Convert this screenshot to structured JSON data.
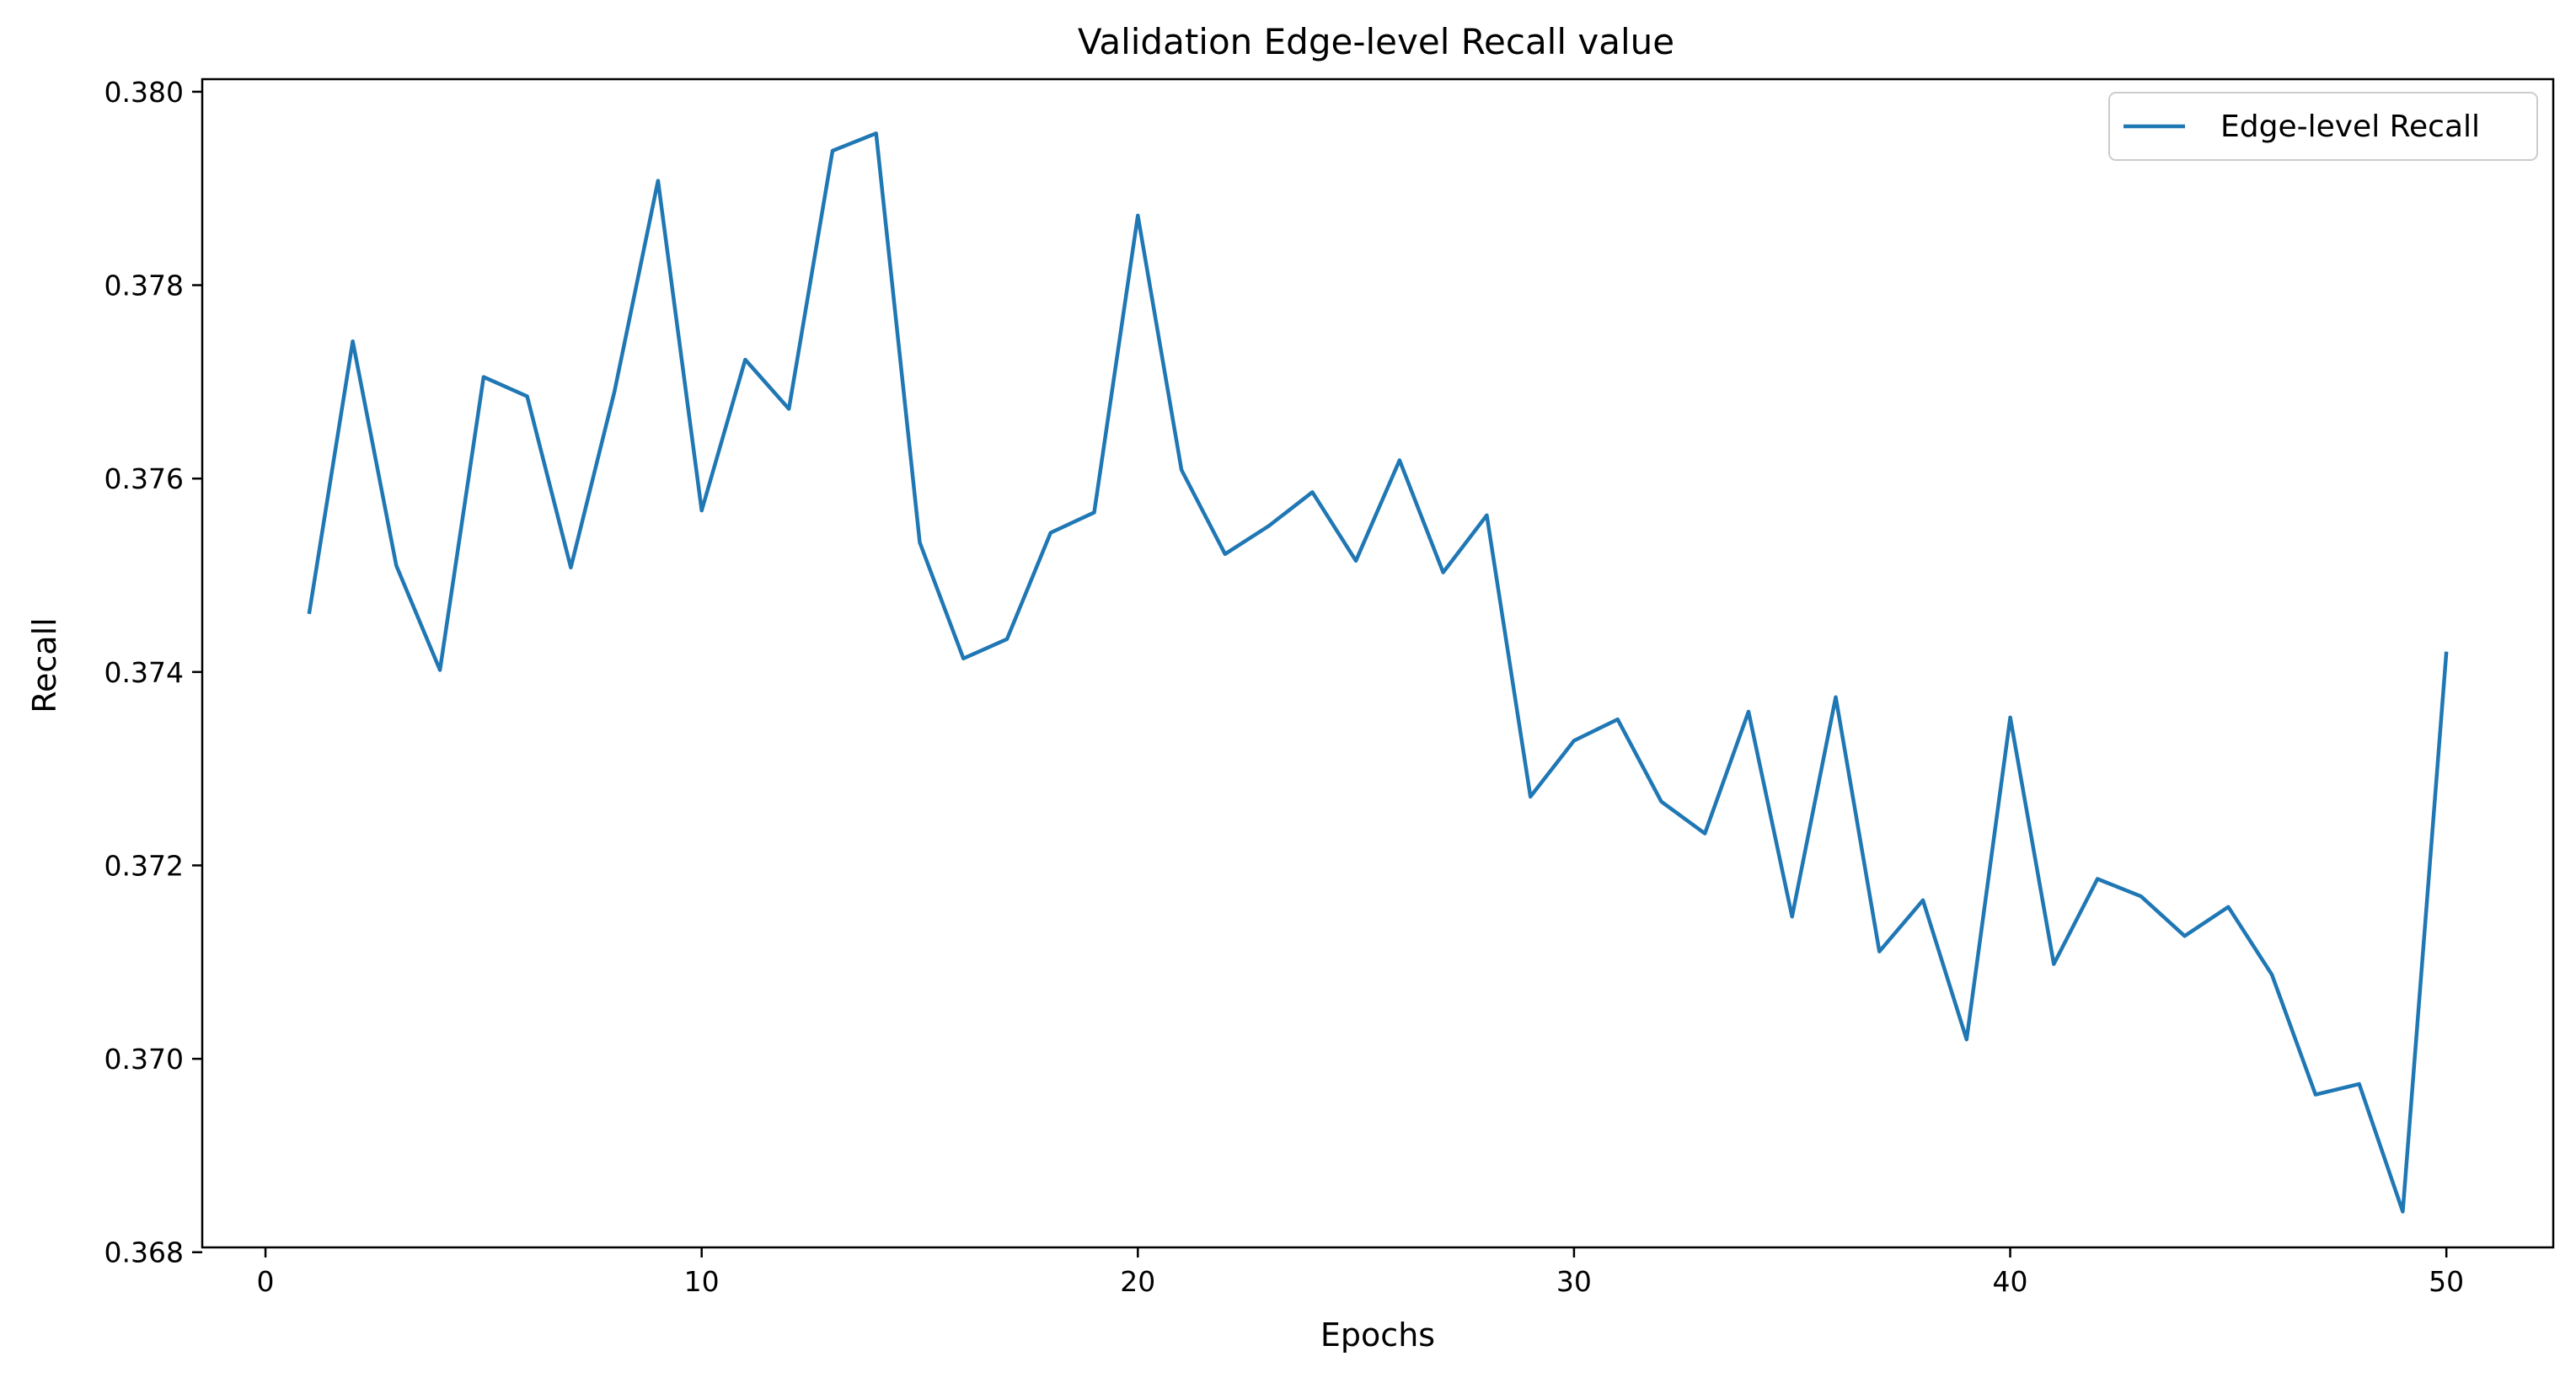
{
  "chart_data": {
    "type": "line",
    "title": "Validation Edge-level Recall value",
    "xlabel": "Epochs",
    "ylabel": "Recall",
    "xlim": [
      -1.45,
      52.45
    ],
    "ylim": [
      0.36805,
      0.38013
    ],
    "xticks": [
      0,
      10,
      20,
      30,
      40,
      50
    ],
    "xtick_labels": [
      "0",
      "10",
      "20",
      "30",
      "40",
      "50"
    ],
    "yticks": [
      0.368,
      0.37,
      0.372,
      0.374,
      0.376,
      0.378,
      0.38
    ],
    "ytick_labels": [
      "0.368",
      "0.370",
      "0.372",
      "0.374",
      "0.376",
      "0.378",
      "0.380"
    ],
    "grid": false,
    "legend_position": "top-right",
    "series": [
      {
        "name": "Edge-level Recall",
        "color": "#1f77b4",
        "x": [
          1,
          2,
          3,
          4,
          5,
          6,
          7,
          8,
          9,
          10,
          11,
          12,
          13,
          14,
          15,
          16,
          17,
          18,
          19,
          20,
          21,
          22,
          23,
          24,
          25,
          26,
          27,
          28,
          29,
          30,
          31,
          32,
          33,
          34,
          35,
          36,
          37,
          38,
          39,
          40,
          41,
          42,
          43,
          44,
          45,
          46,
          47,
          48,
          49,
          50
        ],
        "y": [
          0.3746,
          0.37742,
          0.3751,
          0.37402,
          0.37705,
          0.37685,
          0.37508,
          0.3769,
          0.37908,
          0.37567,
          0.37723,
          0.37672,
          0.37939,
          0.37957,
          0.37534,
          0.37414,
          0.37434,
          0.37544,
          0.37565,
          0.37872,
          0.37609,
          0.37522,
          0.37551,
          0.37586,
          0.37515,
          0.37619,
          0.37503,
          0.37562,
          0.37271,
          0.37329,
          0.37351,
          0.37266,
          0.37233,
          0.37359,
          0.37147,
          0.37374,
          0.37111,
          0.37164,
          0.3702,
          0.37353,
          0.37098,
          0.37186,
          0.37168,
          0.37127,
          0.37157,
          0.37087,
          0.36963,
          0.36974,
          0.36842,
          0.37421
        ]
      }
    ]
  }
}
